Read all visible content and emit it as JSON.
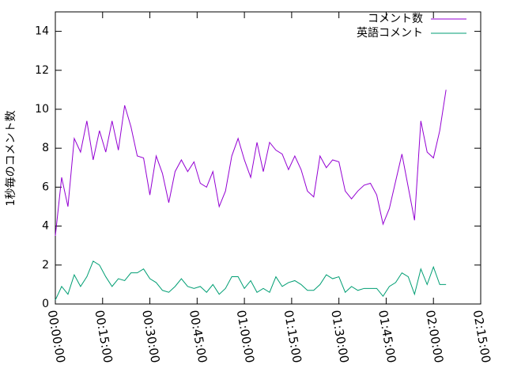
{
  "chart_data": {
    "type": "line",
    "ylabel": "1秒毎のコメント数",
    "x": [
      0,
      120,
      240,
      360,
      480,
      600,
      720,
      840,
      960,
      1080,
      1200,
      1320,
      1440,
      1560,
      1680,
      1800,
      1920,
      2040,
      2160,
      2280,
      2400,
      2520,
      2640,
      2760,
      2880,
      3000,
      3120,
      3240,
      3360,
      3480,
      3600,
      3720,
      3840,
      3960,
      4080,
      4200,
      4320,
      4440,
      4560,
      4680,
      4800,
      4920,
      5040,
      5160,
      5280,
      5400,
      5520,
      5640,
      5760,
      5880,
      6000,
      6120,
      6240,
      6360,
      6480,
      6600,
      6720,
      6840,
      6960,
      7080,
      7200,
      7320,
      7440
    ],
    "series": [
      {
        "name": "コメント数",
        "color": "#9400d3",
        "values": [
          3.5,
          6.5,
          5.0,
          8.5,
          7.8,
          9.4,
          7.4,
          8.9,
          7.8,
          9.4,
          7.9,
          10.2,
          9.1,
          7.6,
          7.5,
          5.6,
          7.6,
          6.7,
          5.2,
          6.8,
          7.4,
          6.8,
          7.3,
          6.2,
          6.0,
          6.8,
          5.0,
          5.8,
          7.6,
          8.5,
          7.4,
          6.5,
          8.3,
          6.8,
          8.3,
          7.9,
          7.7,
          6.9,
          7.6,
          6.9,
          5.8,
          5.5,
          7.6,
          7.0,
          7.4,
          7.3,
          5.8,
          5.4,
          5.8,
          6.1,
          6.2,
          5.6,
          4.1,
          4.9,
          6.3,
          7.7,
          6.0,
          4.3,
          9.4,
          7.8,
          7.5,
          8.9,
          11.0
        ]
      },
      {
        "name": "英語コメント",
        "color": "#009e73",
        "values": [
          0.2,
          0.9,
          0.5,
          1.5,
          0.9,
          1.4,
          2.2,
          2.0,
          1.4,
          0.9,
          1.3,
          1.2,
          1.6,
          1.6,
          1.8,
          1.3,
          1.1,
          0.7,
          0.6,
          0.9,
          1.3,
          0.9,
          0.8,
          0.9,
          0.6,
          1.0,
          0.5,
          0.8,
          1.4,
          1.4,
          0.8,
          1.2,
          0.6,
          0.8,
          0.6,
          1.4,
          0.9,
          1.1,
          1.2,
          1.0,
          0.7,
          0.7,
          1.0,
          1.5,
          1.3,
          1.4,
          0.6,
          0.9,
          0.7,
          0.8,
          0.8,
          0.8,
          0.4,
          0.9,
          1.1,
          1.6,
          1.4,
          0.5,
          1.8,
          1.0,
          1.9,
          1.0,
          1.0
        ]
      }
    ],
    "xlim": [
      0,
      8100
    ],
    "xticks": [
      {
        "value": 0,
        "label": "00:00:00"
      },
      {
        "value": 900,
        "label": "00:15:00"
      },
      {
        "value": 1800,
        "label": "00:30:00"
      },
      {
        "value": 2700,
        "label": "00:45:00"
      },
      {
        "value": 3600,
        "label": "01:00:00"
      },
      {
        "value": 4500,
        "label": "01:15:00"
      },
      {
        "value": 5400,
        "label": "01:30:00"
      },
      {
        "value": 6300,
        "label": "01:45:00"
      },
      {
        "value": 7200,
        "label": "02:00:00"
      },
      {
        "value": 8100,
        "label": "02:15:00"
      }
    ],
    "ylim": [
      0,
      15
    ],
    "yticks": [
      0,
      2,
      4,
      6,
      8,
      10,
      12,
      14
    ],
    "legend": "top-right"
  }
}
